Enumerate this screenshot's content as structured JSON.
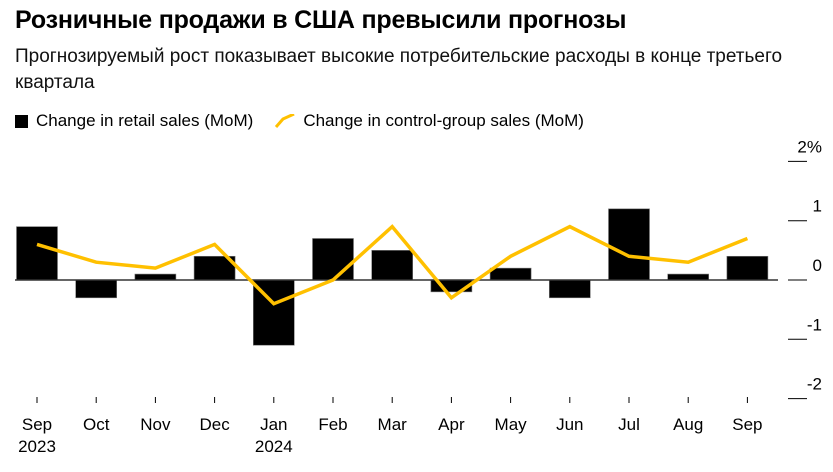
{
  "title": "Розничные продажи в США превысили прогнозы",
  "subtitle": "Прогнозируемый рост показывает высокие потребительские расходы в конце третьего квартала",
  "chart_data": {
    "type": "bar+line",
    "categories": [
      "Sep|2023",
      "Oct",
      "Nov",
      "Dec",
      "Jan|2024",
      "Feb",
      "Mar",
      "Apr",
      "May",
      "Jun",
      "Jul",
      "Aug",
      "Sep"
    ],
    "series": [
      {
        "name": "Change in retail sales (MoM)",
        "type": "bar",
        "color": "#000000",
        "values": [
          0.9,
          -0.3,
          0.1,
          0.4,
          -1.1,
          0.7,
          0.5,
          -0.2,
          0.2,
          -0.3,
          1.2,
          0.1,
          0.4
        ]
      },
      {
        "name": "Change in control-group sales (MoM)",
        "type": "line",
        "color": "#ffc000",
        "values": [
          0.6,
          0.3,
          0.2,
          0.6,
          -0.4,
          0.0,
          0.9,
          -0.3,
          0.4,
          0.9,
          0.4,
          0.3,
          0.7
        ]
      }
    ],
    "yticks": [
      "2%",
      "1",
      "0",
      "-1",
      "-2"
    ],
    "ytick_values": [
      2,
      1,
      0,
      -1,
      -2
    ],
    "ylim": [
      -2,
      2
    ],
    "legend": "top-left",
    "grid": false
  }
}
